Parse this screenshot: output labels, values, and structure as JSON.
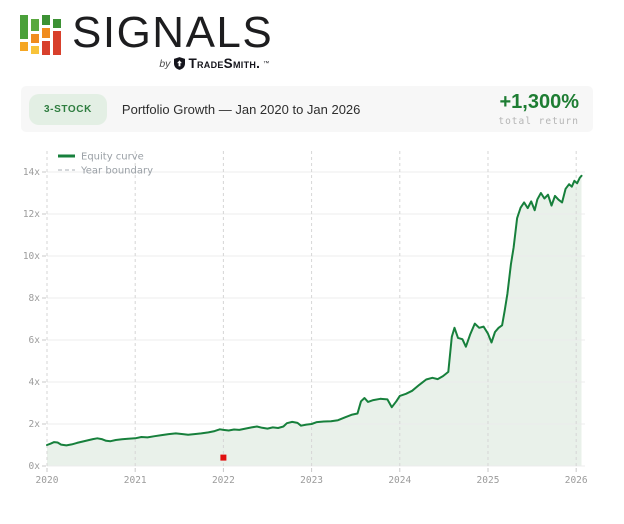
{
  "logo": {
    "title": "SIGNALS",
    "by": "by",
    "brand": "TradeSmith.",
    "tm": "™"
  },
  "summary": {
    "badge": "3-STOCK",
    "title": "Portfolio Growth — Jan 2020 to Jan 2026",
    "return_value": "+1,300%",
    "return_caption": "total return"
  },
  "colors": {
    "line": "#17803c",
    "fill": "#e9f1ea",
    "grid": "#ececec",
    "year_boundary": "#d6d6d6",
    "marker": "#e01010",
    "tick_label": "#9b9b9b",
    "legend_text": "#9aa0a6",
    "accent_green": "#1e7d33",
    "badge_bg": "#e3efe4",
    "badge_text": "#2e7d3f"
  },
  "chart_data": {
    "type": "line",
    "title": "Portfolio Growth — Jan 2020 to Jan 2026",
    "xlabel": "",
    "ylabel": "",
    "xlim": [
      2020,
      2026.1
    ],
    "ylim": [
      0,
      15
    ],
    "xticks": [
      2020,
      2021,
      2022,
      2023,
      2024,
      2025,
      2026
    ],
    "yticks": [
      0,
      2,
      4,
      6,
      8,
      10,
      12,
      14
    ],
    "ytick_suffix": "x",
    "grid": true,
    "legend_position": "top-left",
    "legend": [
      {
        "label": "Equity curve",
        "style": "solid",
        "color": "#17803c"
      },
      {
        "label": "Year boundary",
        "style": "dashed",
        "color": "#c6cacd"
      }
    ],
    "marker": {
      "x": 2022.0,
      "y": 0.4,
      "color": "#e01010",
      "shape": "square"
    },
    "series": [
      {
        "name": "Equity curve",
        "color": "#17803c",
        "fill": "#e9f1ea",
        "points": [
          [
            2020.0,
            1.0
          ],
          [
            2020.04,
            1.06
          ],
          [
            2020.08,
            1.14
          ],
          [
            2020.12,
            1.12
          ],
          [
            2020.16,
            1.02
          ],
          [
            2020.22,
            0.98
          ],
          [
            2020.28,
            1.03
          ],
          [
            2020.34,
            1.1
          ],
          [
            2020.4,
            1.16
          ],
          [
            2020.46,
            1.22
          ],
          [
            2020.52,
            1.28
          ],
          [
            2020.57,
            1.32
          ],
          [
            2020.62,
            1.28
          ],
          [
            2020.67,
            1.2
          ],
          [
            2020.72,
            1.18
          ],
          [
            2020.78,
            1.24
          ],
          [
            2020.85,
            1.27
          ],
          [
            2020.92,
            1.3
          ],
          [
            2021.0,
            1.32
          ],
          [
            2021.07,
            1.38
          ],
          [
            2021.14,
            1.36
          ],
          [
            2021.22,
            1.42
          ],
          [
            2021.3,
            1.47
          ],
          [
            2021.38,
            1.52
          ],
          [
            2021.46,
            1.55
          ],
          [
            2021.54,
            1.52
          ],
          [
            2021.6,
            1.49
          ],
          [
            2021.67,
            1.52
          ],
          [
            2021.75,
            1.55
          ],
          [
            2021.83,
            1.6
          ],
          [
            2021.9,
            1.66
          ],
          [
            2021.96,
            1.75
          ],
          [
            2022.0,
            1.72
          ],
          [
            2022.06,
            1.69
          ],
          [
            2022.12,
            1.74
          ],
          [
            2022.18,
            1.72
          ],
          [
            2022.25,
            1.78
          ],
          [
            2022.32,
            1.84
          ],
          [
            2022.38,
            1.88
          ],
          [
            2022.44,
            1.82
          ],
          [
            2022.5,
            1.78
          ],
          [
            2022.56,
            1.84
          ],
          [
            2022.62,
            1.81
          ],
          [
            2022.68,
            1.88
          ],
          [
            2022.72,
            2.04
          ],
          [
            2022.78,
            2.1
          ],
          [
            2022.84,
            2.05
          ],
          [
            2022.88,
            1.92
          ],
          [
            2022.94,
            1.97
          ],
          [
            2023.0,
            2.0
          ],
          [
            2023.06,
            2.09
          ],
          [
            2023.14,
            2.12
          ],
          [
            2023.22,
            2.13
          ],
          [
            2023.3,
            2.18
          ],
          [
            2023.38,
            2.32
          ],
          [
            2023.46,
            2.45
          ],
          [
            2023.52,
            2.5
          ],
          [
            2023.56,
            3.08
          ],
          [
            2023.6,
            3.24
          ],
          [
            2023.64,
            3.05
          ],
          [
            2023.7,
            3.14
          ],
          [
            2023.78,
            3.2
          ],
          [
            2023.86,
            3.17
          ],
          [
            2023.91,
            2.8
          ],
          [
            2023.96,
            3.08
          ],
          [
            2024.0,
            3.34
          ],
          [
            2024.07,
            3.44
          ],
          [
            2024.14,
            3.58
          ],
          [
            2024.22,
            3.86
          ],
          [
            2024.3,
            4.12
          ],
          [
            2024.37,
            4.2
          ],
          [
            2024.43,
            4.14
          ],
          [
            2024.49,
            4.28
          ],
          [
            2024.55,
            4.48
          ],
          [
            2024.59,
            6.15
          ],
          [
            2024.62,
            6.58
          ],
          [
            2024.66,
            6.1
          ],
          [
            2024.71,
            6.04
          ],
          [
            2024.75,
            5.68
          ],
          [
            2024.8,
            6.28
          ],
          [
            2024.85,
            6.78
          ],
          [
            2024.9,
            6.58
          ],
          [
            2024.95,
            6.64
          ],
          [
            2025.0,
            6.3
          ],
          [
            2025.04,
            5.88
          ],
          [
            2025.08,
            6.38
          ],
          [
            2025.12,
            6.58
          ],
          [
            2025.16,
            6.7
          ],
          [
            2025.19,
            7.4
          ],
          [
            2025.22,
            8.2
          ],
          [
            2025.26,
            9.6
          ],
          [
            2025.29,
            10.4
          ],
          [
            2025.33,
            11.8
          ],
          [
            2025.37,
            12.3
          ],
          [
            2025.41,
            12.55
          ],
          [
            2025.45,
            12.28
          ],
          [
            2025.49,
            12.6
          ],
          [
            2025.53,
            12.18
          ],
          [
            2025.56,
            12.7
          ],
          [
            2025.6,
            13.0
          ],
          [
            2025.64,
            12.74
          ],
          [
            2025.68,
            12.92
          ],
          [
            2025.72,
            12.4
          ],
          [
            2025.76,
            12.86
          ],
          [
            2025.8,
            12.68
          ],
          [
            2025.84,
            12.55
          ],
          [
            2025.88,
            13.2
          ],
          [
            2025.92,
            13.42
          ],
          [
            2025.95,
            13.3
          ],
          [
            2025.98,
            13.58
          ],
          [
            2026.01,
            13.46
          ],
          [
            2026.04,
            13.72
          ],
          [
            2026.06,
            13.82
          ]
        ]
      }
    ]
  }
}
